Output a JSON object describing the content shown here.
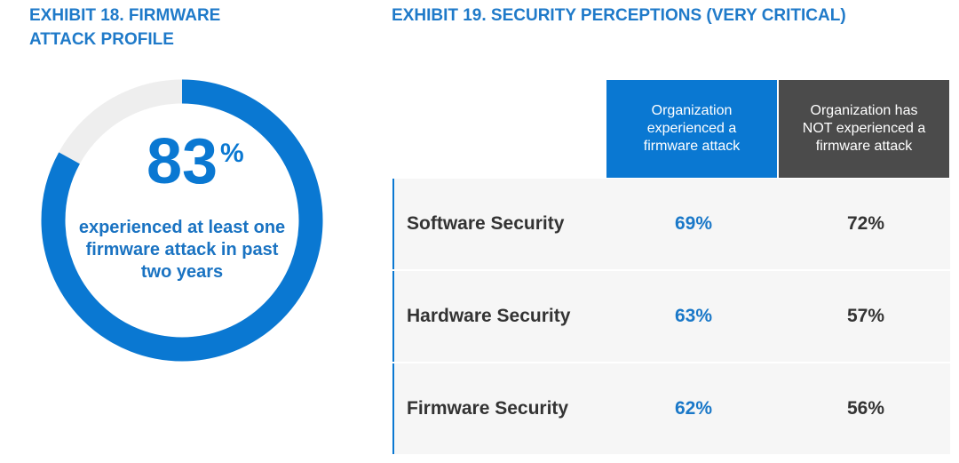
{
  "chart_data": {
    "type": "donut",
    "title": "EXHIBIT 18. FIRMWARE ATTACK PROFILE",
    "values": [
      83
    ],
    "unit": "%",
    "caption": "experienced at least one firmware attack in past two years",
    "color": "#0a78d2",
    "track_color": "#eeeeee"
  },
  "table": {
    "title": "EXHIBIT 19. SECURITY PERCEPTIONS (VERY CRITICAL)",
    "columns": [
      "Organization experienced a firmware attack",
      "Organization has NOT experienced a firmware attack"
    ],
    "rows": [
      [
        "Software Security",
        "69%",
        "72%"
      ],
      [
        "Hardware Security",
        "63%",
        "57%"
      ],
      [
        "Firmware Security",
        "62%",
        "56%"
      ]
    ]
  }
}
